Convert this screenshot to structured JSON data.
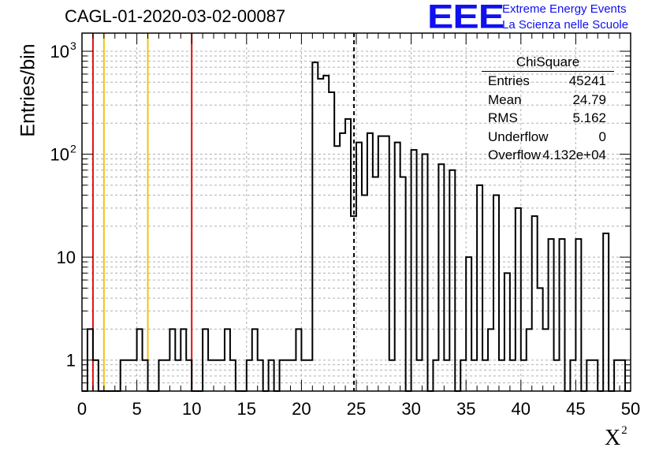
{
  "header": {
    "title": "CAGL-01-2020-03-02-00087",
    "logo": "EEE",
    "logo_line1": "Extreme Energy Events",
    "logo_line2": "La Scienza nelle Scuole"
  },
  "stats": {
    "title": "ChiSquare",
    "rows": [
      {
        "key": "Entries",
        "value": "45241"
      },
      {
        "key": "Mean",
        "value": "24.79"
      },
      {
        "key": "RMS",
        "value": "5.162"
      },
      {
        "key": "Underflow",
        "value": "0"
      },
      {
        "key": "Overflow",
        "value": "4.132e+04"
      }
    ]
  },
  "colors": {
    "line": "#000000",
    "grid": "#b0b0b0",
    "red": "#dd1111",
    "yellow": "#f2c21a",
    "logo": "#1010f0"
  },
  "chart_data": {
    "type": "histogram",
    "xlabel": "X",
    "xlabel_sup": "2",
    "ylabel": "Entries/bin",
    "xlim": [
      0,
      50
    ],
    "ylim": [
      0.5,
      1500
    ],
    "yscale": "log",
    "grid": true,
    "x_ticks": [
      "0",
      "5",
      "10",
      "15",
      "20",
      "25",
      "30",
      "35",
      "40",
      "45",
      "50"
    ],
    "y_ticks": [
      {
        "value": 1,
        "label": "1"
      },
      {
        "value": 10,
        "label": "10"
      },
      {
        "value": 100,
        "label": "10",
        "sup": "2"
      },
      {
        "value": 1000,
        "label": "10",
        "sup": "3"
      }
    ],
    "bin_width": 0.5,
    "bins": [
      {
        "x": 0.0,
        "y": 0
      },
      {
        "x": 0.5,
        "y": 2
      },
      {
        "x": 1.0,
        "y": 1
      },
      {
        "x": 1.5,
        "y": 0
      },
      {
        "x": 2.0,
        "y": 0
      },
      {
        "x": 2.5,
        "y": 0
      },
      {
        "x": 3.0,
        "y": 0
      },
      {
        "x": 3.5,
        "y": 1
      },
      {
        "x": 4.0,
        "y": 1
      },
      {
        "x": 4.5,
        "y": 1
      },
      {
        "x": 5.0,
        "y": 2
      },
      {
        "x": 5.5,
        "y": 1
      },
      {
        "x": 6.0,
        "y": 0
      },
      {
        "x": 6.5,
        "y": 0
      },
      {
        "x": 7.0,
        "y": 1
      },
      {
        "x": 7.5,
        "y": 1
      },
      {
        "x": 8.0,
        "y": 2
      },
      {
        "x": 8.5,
        "y": 1
      },
      {
        "x": 9.0,
        "y": 2
      },
      {
        "x": 9.5,
        "y": 1
      },
      {
        "x": 10.0,
        "y": 0
      },
      {
        "x": 10.5,
        "y": 0
      },
      {
        "x": 11.0,
        "y": 2
      },
      {
        "x": 11.5,
        "y": 1
      },
      {
        "x": 12.0,
        "y": 1
      },
      {
        "x": 12.5,
        "y": 1
      },
      {
        "x": 13.0,
        "y": 2
      },
      {
        "x": 13.5,
        "y": 1
      },
      {
        "x": 14.0,
        "y": 0
      },
      {
        "x": 14.5,
        "y": 0
      },
      {
        "x": 15.0,
        "y": 1
      },
      {
        "x": 15.5,
        "y": 2
      },
      {
        "x": 16.0,
        "y": 1
      },
      {
        "x": 16.5,
        "y": 0
      },
      {
        "x": 17.0,
        "y": 1
      },
      {
        "x": 17.5,
        "y": 0
      },
      {
        "x": 18.0,
        "y": 1
      },
      {
        "x": 18.5,
        "y": 1
      },
      {
        "x": 19.0,
        "y": 1
      },
      {
        "x": 19.5,
        "y": 2
      },
      {
        "x": 20.0,
        "y": 1
      },
      {
        "x": 20.5,
        "y": 1
      },
      {
        "x": 21.0,
        "y": 780
      },
      {
        "x": 21.5,
        "y": 540
      },
      {
        "x": 22.0,
        "y": 580
      },
      {
        "x": 22.5,
        "y": 400
      },
      {
        "x": 23.0,
        "y": 120
      },
      {
        "x": 23.5,
        "y": 160
      },
      {
        "x": 24.0,
        "y": 220
      },
      {
        "x": 24.5,
        "y": 25
      },
      {
        "x": 25.0,
        "y": 130
      },
      {
        "x": 25.5,
        "y": 40
      },
      {
        "x": 26.0,
        "y": 160
      },
      {
        "x": 26.5,
        "y": 60
      },
      {
        "x": 27.0,
        "y": 150
      },
      {
        "x": 27.5,
        "y": 150
      },
      {
        "x": 28.0,
        "y": 1
      },
      {
        "x": 28.5,
        "y": 130
      },
      {
        "x": 29.0,
        "y": 60
      },
      {
        "x": 29.5,
        "y": 0
      },
      {
        "x": 30.0,
        "y": 110
      },
      {
        "x": 30.5,
        "y": 1
      },
      {
        "x": 31.0,
        "y": 100
      },
      {
        "x": 31.5,
        "y": 0
      },
      {
        "x": 32.0,
        "y": 1
      },
      {
        "x": 32.5,
        "y": 80
      },
      {
        "x": 33.0,
        "y": 1
      },
      {
        "x": 33.5,
        "y": 70
      },
      {
        "x": 34.0,
        "y": 0
      },
      {
        "x": 34.5,
        "y": 1
      },
      {
        "x": 35.0,
        "y": 10
      },
      {
        "x": 35.5,
        "y": 1
      },
      {
        "x": 36.0,
        "y": 50
      },
      {
        "x": 36.5,
        "y": 1
      },
      {
        "x": 37.0,
        "y": 2
      },
      {
        "x": 37.5,
        "y": 40
      },
      {
        "x": 38.0,
        "y": 1
      },
      {
        "x": 38.5,
        "y": 7
      },
      {
        "x": 39.0,
        "y": 1
      },
      {
        "x": 39.5,
        "y": 30
      },
      {
        "x": 40.0,
        "y": 1
      },
      {
        "x": 40.5,
        "y": 2
      },
      {
        "x": 41.0,
        "y": 25
      },
      {
        "x": 41.5,
        "y": 5
      },
      {
        "x": 42.0,
        "y": 2
      },
      {
        "x": 42.5,
        "y": 15
      },
      {
        "x": 43.0,
        "y": 1
      },
      {
        "x": 43.5,
        "y": 15
      },
      {
        "x": 44.0,
        "y": 0
      },
      {
        "x": 44.5,
        "y": 1
      },
      {
        "x": 45.0,
        "y": 15
      },
      {
        "x": 45.5,
        "y": 0
      },
      {
        "x": 46.0,
        "y": 1
      },
      {
        "x": 46.5,
        "y": 1
      },
      {
        "x": 47.0,
        "y": 0
      },
      {
        "x": 47.5,
        "y": 17
      },
      {
        "x": 48.0,
        "y": 0
      },
      {
        "x": 48.5,
        "y": 1
      },
      {
        "x": 49.0,
        "y": 1
      },
      {
        "x": 49.5,
        "y": 0
      }
    ],
    "vertical_lines": [
      {
        "x": 1.0,
        "color": "red",
        "style": "solid"
      },
      {
        "x": 2.0,
        "color": "yellow",
        "style": "solid"
      },
      {
        "x": 6.0,
        "color": "yellow",
        "style": "solid"
      },
      {
        "x": 10.0,
        "color": "red",
        "style": "solid"
      },
      {
        "x": 24.79,
        "color": "black",
        "style": "dashed"
      }
    ]
  }
}
